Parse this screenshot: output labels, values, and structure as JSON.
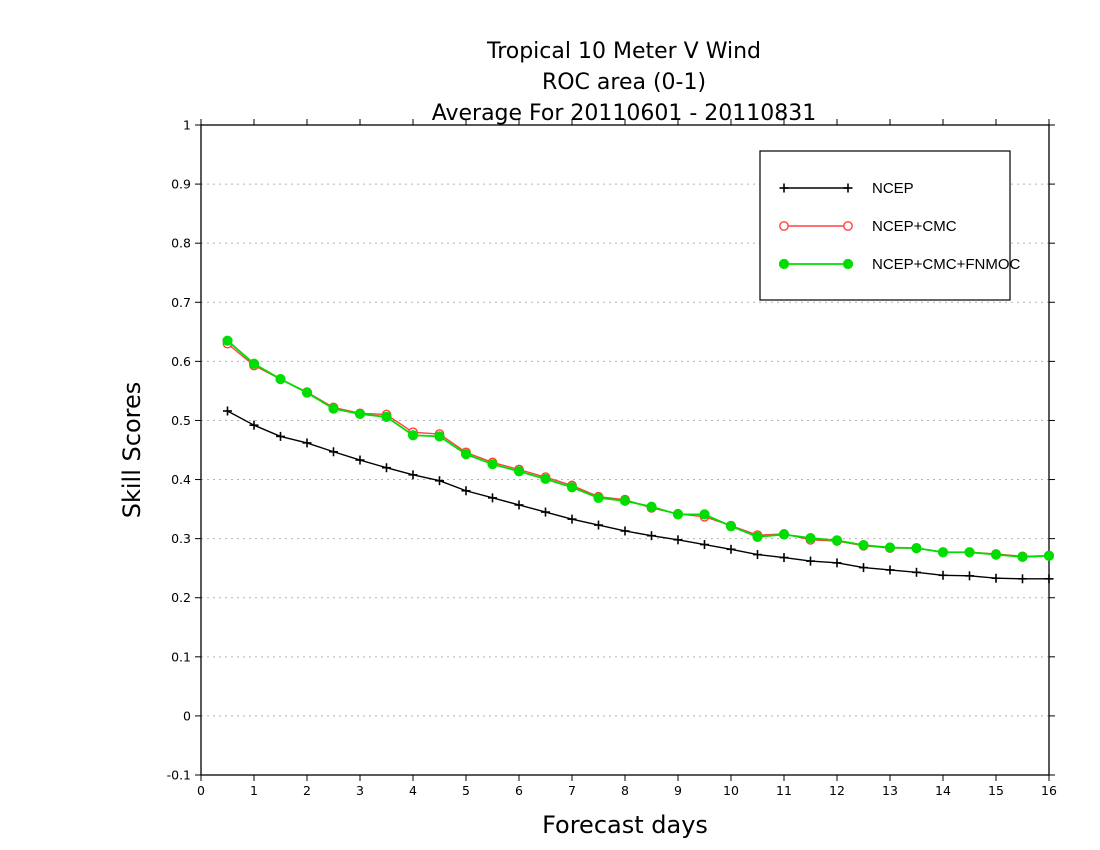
{
  "chart_data": {
    "type": "line",
    "title": [
      "Tropical 10 Meter V Wind",
      "ROC area (0-1)",
      "Average For 20110601 - 20110831"
    ],
    "xlabel": "Forecast days",
    "ylabel": "Skill Scores",
    "xlim": [
      0,
      16
    ],
    "ylim": [
      -0.1,
      1
    ],
    "xticks": [
      0,
      1,
      2,
      3,
      4,
      5,
      6,
      7,
      8,
      9,
      10,
      11,
      12,
      13,
      14,
      15,
      16
    ],
    "yticks": [
      -0.1,
      0,
      0.1,
      0.2,
      0.3,
      0.4,
      0.5,
      0.6,
      0.7,
      0.8,
      0.9,
      1
    ],
    "ytick_labels": [
      "-0.1",
      "0",
      "0.1",
      "0.2",
      "0.3",
      "0.4",
      "0.5",
      "0.6",
      "0.7",
      "0.8",
      "0.9",
      "1"
    ],
    "grid": "horizontal dotted",
    "legend_position": "top-right",
    "x": [
      0.5,
      1,
      1.5,
      2,
      2.5,
      3,
      3.5,
      4,
      4.5,
      5,
      5.5,
      6,
      6.5,
      7,
      7.5,
      8,
      8.5,
      9,
      9.5,
      10,
      10.5,
      11,
      11.5,
      12,
      12.5,
      13,
      13.5,
      14,
      14.5,
      15,
      15.5,
      16
    ],
    "series": [
      {
        "name": "NCEP",
        "color": "#000000",
        "marker": "plus",
        "values": [
          0.516,
          0.492,
          0.473,
          0.462,
          0.447,
          0.433,
          0.42,
          0.408,
          0.398,
          0.381,
          0.369,
          0.357,
          0.345,
          0.333,
          0.323,
          0.313,
          0.305,
          0.298,
          0.29,
          0.282,
          0.273,
          0.268,
          0.262,
          0.259,
          0.251,
          0.247,
          0.243,
          0.238,
          0.237,
          0.233,
          0.232,
          0.232
        ]
      },
      {
        "name": "NCEP+CMC",
        "color": "#ff4040",
        "marker": "open-circle",
        "values": [
          0.63,
          0.593,
          0.57,
          0.548,
          0.522,
          0.512,
          0.51,
          0.48,
          0.477,
          0.446,
          0.429,
          0.417,
          0.404,
          0.39,
          0.371,
          0.366,
          0.352,
          0.342,
          0.337,
          0.322,
          0.306,
          0.308,
          0.298,
          0.296,
          0.288,
          0.284,
          0.284,
          0.277,
          0.277,
          0.274,
          0.27,
          0.271
        ]
      },
      {
        "name": "NCEP+CMC+FNMOC",
        "color": "#00dd00",
        "marker": "filled-circle",
        "values": [
          0.635,
          0.596,
          0.57,
          0.547,
          0.52,
          0.511,
          0.506,
          0.475,
          0.473,
          0.443,
          0.426,
          0.414,
          0.401,
          0.387,
          0.369,
          0.364,
          0.354,
          0.341,
          0.341,
          0.321,
          0.303,
          0.307,
          0.301,
          0.297,
          0.289,
          0.285,
          0.284,
          0.277,
          0.277,
          0.273,
          0.269,
          0.271
        ]
      }
    ]
  }
}
